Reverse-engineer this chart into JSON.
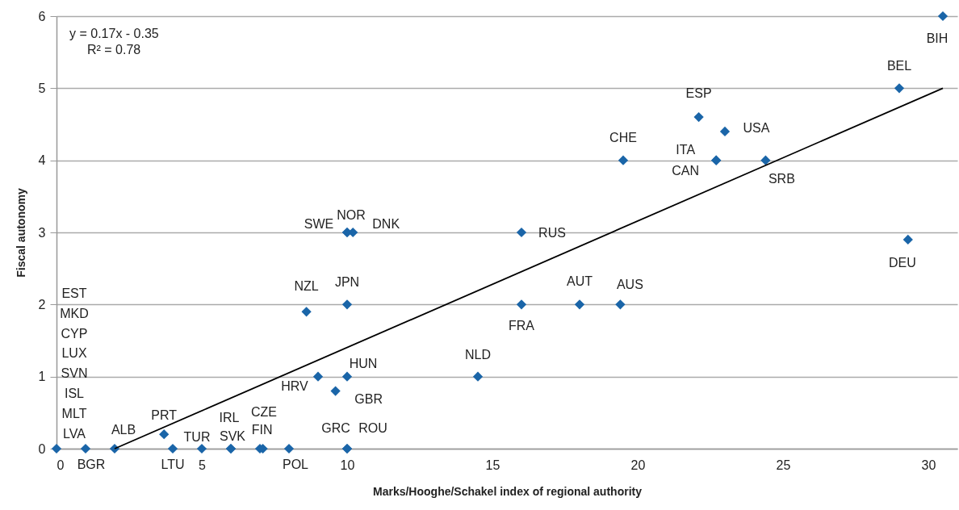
{
  "chart_data": {
    "type": "scatter",
    "xlabel": "Marks/Hooghe/Schakel index of regional authority",
    "ylabel": "Fiscal autonomy",
    "xlim": [
      0,
      31
    ],
    "ylim": [
      0,
      6
    ],
    "xticks": [
      0,
      5,
      10,
      15,
      20,
      25,
      30
    ],
    "yticks": [
      0,
      1,
      2,
      3,
      4,
      5,
      6
    ],
    "grid": "y",
    "marker": "diamond",
    "annotations": [
      "y = 0.17x - 0.35",
      "R² = 0.78",
      "MLT",
      "ISL",
      "SVN",
      "LUX",
      "CYP",
      "MKD",
      "EST"
    ],
    "series": [
      {
        "type": "scatter",
        "color": "#1a65a8",
        "x": [
          0,
          1,
          2,
          3.7,
          4,
          5,
          6,
          6,
          7,
          7.1,
          8,
          10,
          10,
          9,
          9.6,
          10,
          8.6,
          10,
          10,
          10,
          10.2,
          14.5,
          16,
          16,
          18,
          19.4,
          19.5,
          22.1,
          23,
          22.7,
          22.7,
          24.4,
          29,
          29.3,
          30.5
        ],
        "values": [
          0,
          0,
          0,
          0.2,
          0,
          0,
          0,
          0,
          0,
          0,
          0,
          0,
          0,
          1,
          0.8,
          1,
          1.9,
          2,
          3,
          3,
          3,
          1,
          3,
          2,
          2,
          2,
          4,
          4.6,
          4.4,
          4,
          4,
          4,
          5,
          2.9,
          6
        ],
        "value_labels": [
          "LVA",
          "BGR",
          "ALB",
          "PRT",
          "LTU",
          "TUR",
          "IRL",
          "SVK",
          "CZE",
          "FIN",
          "POL",
          "GRC",
          "ROU",
          "HRV",
          "GBR",
          "HUN",
          "NZL",
          "JPN",
          "SWE",
          "NOR",
          "DNK",
          "NLD",
          "RUS",
          "FRA",
          "AUT",
          "AUS",
          "CHE",
          "ESP",
          "USA",
          "ITA",
          "CAN",
          "SRB",
          "BEL",
          "DEU",
          "BIH"
        ]
      },
      {
        "type": "line",
        "color": "#000000",
        "x": [
          2,
          30.5
        ],
        "values": [
          0,
          5
        ],
        "marker": "none"
      }
    ]
  }
}
